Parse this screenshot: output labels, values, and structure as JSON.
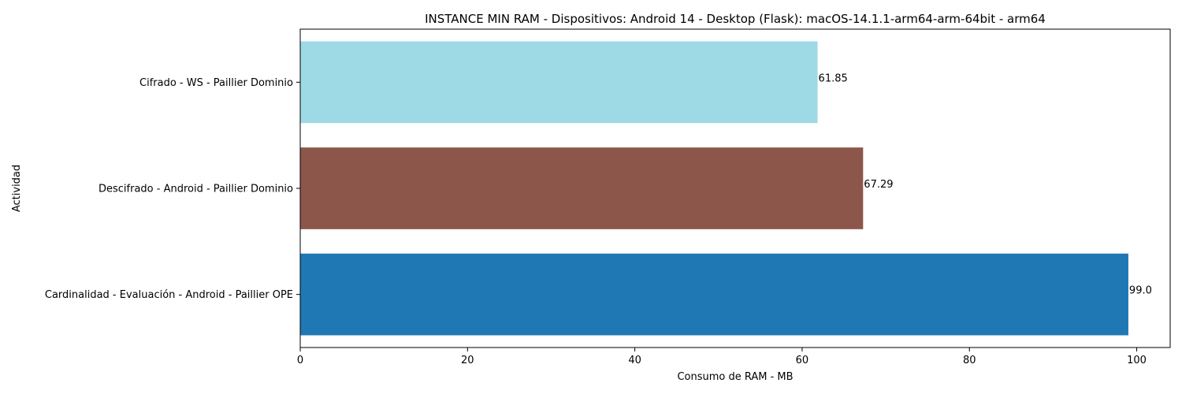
{
  "chart_data": {
    "type": "bar",
    "orientation": "horizontal",
    "title": "INSTANCE MIN RAM - Dispositivos: Android 14 - Desktop (Flask): macOS-14.1.1-arm64-arm-64bit - arm64",
    "xlabel": "Consumo de RAM - MB",
    "ylabel": "Actividad",
    "xlim": [
      0,
      104
    ],
    "xticks": [
      0,
      20,
      40,
      60,
      80,
      100
    ],
    "grid": false,
    "legend": "none",
    "bars": [
      {
        "category": "Cardinalidad - Evaluación - Android - Paillier OPE",
        "value": 99.0,
        "value_label": "99.0",
        "color": "#1f77b4"
      },
      {
        "category": "Descifrado - Android - Paillier Dominio",
        "value": 67.29,
        "value_label": "67.29",
        "color": "#8c564b"
      },
      {
        "category": "Cifrado - WS - Paillier Dominio",
        "value": 61.85,
        "value_label": "61.85",
        "color": "#9edae5"
      }
    ]
  }
}
